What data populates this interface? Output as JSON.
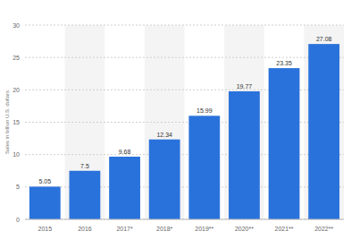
{
  "chart_data": {
    "type": "bar",
    "y_label": "Sales in billion U.S. dollars",
    "categories": [
      "2015",
      "2016",
      "2017*",
      "2018*",
      "2019**",
      "2020**",
      "2021**",
      "2022**"
    ],
    "values": [
      5.05,
      7.5,
      9.68,
      12.34,
      15.99,
      19.77,
      23.35,
      27.08
    ],
    "color": "#2a72db",
    "ylim": [
      0,
      30
    ],
    "yticks": [
      0,
      5,
      10,
      15,
      20,
      25,
      30
    ],
    "grid": true,
    "data_labels": true
  }
}
